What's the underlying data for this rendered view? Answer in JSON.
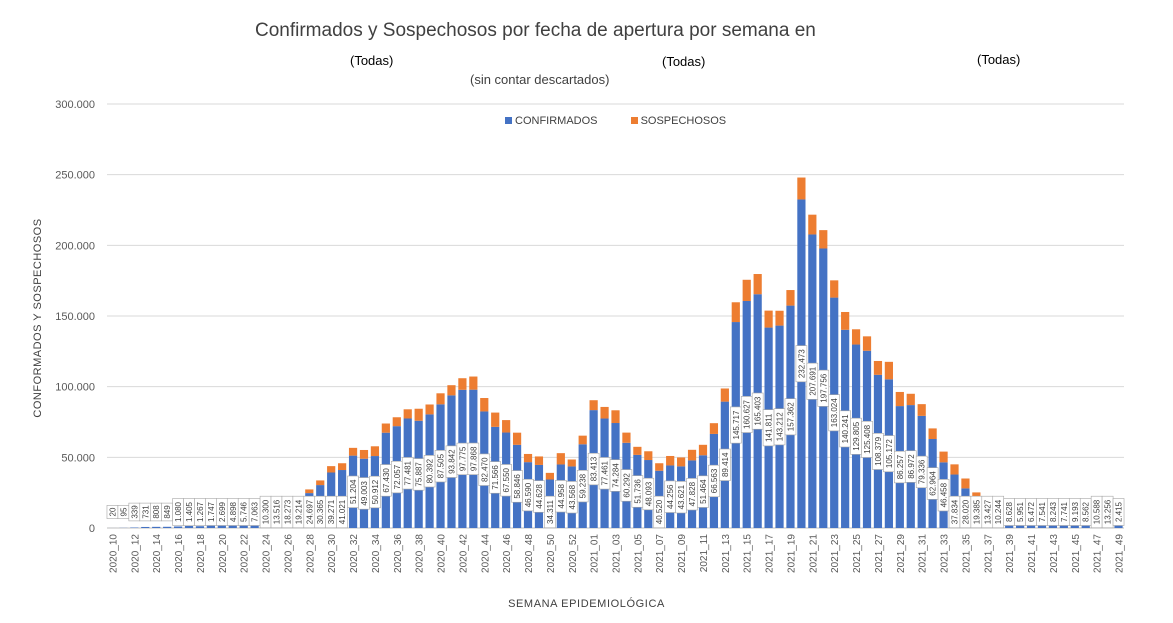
{
  "chart_data": {
    "type": "bar",
    "stacked": true,
    "title": "Confirmados y Sospechosos por fecha de apertura por semana en",
    "subtitle": "(sin contar descartados)",
    "filters": [
      "(Todas)",
      "(Todas)",
      "(Todas)"
    ],
    "xlabel": "SEMANA EPIDEMIOLÓGICA",
    "ylabel": "CONFORMADOS Y SOSPECHOSOS",
    "ylim": [
      0,
      300000
    ],
    "yticks": [
      0,
      50000,
      100000,
      150000,
      200000,
      250000,
      300000
    ],
    "ytick_labels": [
      "0",
      "50.000",
      "100.000",
      "150.000",
      "200.000",
      "250.000",
      "300.000"
    ],
    "legend_position": "top-center",
    "categories": [
      "2020_10",
      "2020_11",
      "2020_12",
      "2020_13",
      "2020_14",
      "2020_15",
      "2020_16",
      "2020_17",
      "2020_18",
      "2020_19",
      "2020_20",
      "2020_21",
      "2020_22",
      "2020_23",
      "2020_24",
      "2020_25",
      "2020_26",
      "2020_27",
      "2020_28",
      "2020_29",
      "2020_30",
      "2020_31",
      "2020_32",
      "2020_33",
      "2020_34",
      "2020_35",
      "2020_36",
      "2020_37",
      "2020_38",
      "2020_39",
      "2020_40",
      "2020_41",
      "2020_42",
      "2020_43",
      "2020_44",
      "2020_45",
      "2020_46",
      "2020_47",
      "2020_48",
      "2020_49",
      "2020_50",
      "2020_51",
      "2020_52",
      "2020_53",
      "2021_01",
      "2021_02",
      "2021_03",
      "2021_04",
      "2021_05",
      "2021_06",
      "2021_07",
      "2021_08",
      "2021_09",
      "2021_10",
      "2021_11",
      "2021_12",
      "2021_13",
      "2021_14",
      "2021_15",
      "2021_16",
      "2021_17",
      "2021_18",
      "2021_19",
      "2021_20",
      "2021_21",
      "2021_22",
      "2021_23",
      "2021_24",
      "2021_25",
      "2021_26",
      "2021_27",
      "2021_28",
      "2021_29",
      "2021_30",
      "2021_31",
      "2021_32",
      "2021_33",
      "2021_34",
      "2021_35",
      "2021_36",
      "2021_37",
      "2021_38",
      "2021_39",
      "2021_40",
      "2021_41",
      "2021_42",
      "2021_43",
      "2021_44",
      "2021_45",
      "2021_46",
      "2021_47",
      "2021_48",
      "2021_49"
    ],
    "x_tick_labels": [
      "2020_10",
      "2020_12",
      "2020_14",
      "2020_16",
      "2020_18",
      "2020_20",
      "2020_22",
      "2020_24",
      "2020_26",
      "2020_28",
      "2020_30",
      "2020_32",
      "2020_34",
      "2020_36",
      "2020_38",
      "2020_40",
      "2020_42",
      "2020_44",
      "2020_46",
      "2020_48",
      "2020_50",
      "2020_52",
      "2021_01",
      "2021_03",
      "2021_05",
      "2021_07",
      "2021_09",
      "2021_11",
      "2021_13",
      "2021_15",
      "2021_17",
      "2021_19",
      "2021_21",
      "2021_23",
      "2021_25",
      "2021_27",
      "2021_29",
      "2021_31",
      "2021_33",
      "2021_35",
      "2021_37",
      "2021_39",
      "2021_41",
      "2021_43",
      "2021_45",
      "2021_47",
      "2021_49"
    ],
    "series": [
      {
        "name": "CONFIRMADOS",
        "color": "#4472C4",
        "values": [
          20,
          95,
          339,
          731,
          808,
          849,
          1080,
          1405,
          1267,
          1747,
          2699,
          4898,
          5746,
          7063,
          10300,
          13516,
          18273,
          19214,
          24697,
          30365,
          39271,
          41021,
          51204,
          49003,
          50912,
          67430,
          72057,
          77481,
          75887,
          80392,
          87505,
          93842,
          97775,
          97868,
          82470,
          71566,
          67550,
          58846,
          46590,
          44628,
          34311,
          44958,
          43568,
          59238,
          83413,
          77461,
          74284,
          60292,
          51736,
          48093,
          40520,
          44256,
          43621,
          47828,
          51464,
          66563,
          89414,
          145717,
          160627,
          165403,
          141811,
          143212,
          157362,
          232473,
          207691,
          197756,
          163024,
          140241,
          129805,
          125408,
          108379,
          105172,
          86257,
          86972,
          79336,
          62964,
          46458,
          37834,
          28020,
          19385,
          13427,
          10244,
          8628,
          5951,
          6472,
          7541,
          8243,
          7741,
          9193,
          8562,
          10588,
          13256,
          2415
        ],
        "labels": [
          "20",
          "95",
          "339",
          "731",
          "808",
          "849",
          "1.080",
          "1.405",
          "1.267",
          "1.747",
          "2.699",
          "4.898",
          "5.746",
          "7.063",
          "10.300",
          "13.516",
          "18.273",
          "19.214",
          "24.697",
          "30.365",
          "39.271",
          "41.021",
          "51.204",
          "49.003",
          "50.912",
          "67.430",
          "72.057",
          "77.481",
          "75.887",
          "80.392",
          "87.505",
          "93.842",
          "97.775",
          "97.868",
          "82.470",
          "71.566",
          "67.550",
          "58.846",
          "46.590",
          "44.628",
          "34.311",
          "44.958",
          "43.568",
          "59.238",
          "83.413",
          "77.461",
          "74.284",
          "60.292",
          "51.736",
          "48.093",
          "40.520",
          "44.256",
          "43.621",
          "47.828",
          "51.464",
          "66.563",
          "89.414",
          "145.717",
          "160.627",
          "165.403",
          "141.811",
          "143.212",
          "157.362",
          "232.473",
          "207.691",
          "197.756",
          "163.024",
          "140.241",
          "129.805",
          "125.408",
          "108.379",
          "105.172",
          "86.257",
          "86.972",
          "79.336",
          "62.964",
          "46.458",
          "37.834",
          "28.020",
          "19.385",
          "13.427",
          "10.244",
          "8.628",
          "5.951",
          "6.472",
          "7.541",
          "8.243",
          "7.741",
          "9.193",
          "8.562",
          "10.588",
          "13.256",
          "2.415"
        ]
      },
      {
        "name": "SOSPECHOSOS",
        "color": "#ED7D31",
        "values": [
          0,
          0,
          0,
          0,
          0,
          0,
          0,
          0,
          0,
          0,
          0,
          0,
          0,
          0,
          500,
          800,
          1500,
          2200,
          2600,
          3300,
          4500,
          4800,
          5500,
          6200,
          6900,
          6500,
          6300,
          6500,
          8500,
          7000,
          7800,
          7200,
          8200,
          9300,
          9500,
          10100,
          8800,
          8600,
          5800,
          6000,
          4700,
          8000,
          4900,
          6100,
          7000,
          8200,
          9000,
          7200,
          5700,
          6200,
          5300,
          6700,
          6300,
          7500,
          7400,
          7600,
          9300,
          14000,
          15000,
          14300,
          12000,
          10500,
          11000,
          15500,
          14000,
          13000,
          12200,
          12600,
          10800,
          10200,
          9800,
          12400,
          10000,
          8000,
          8300,
          7500,
          7600,
          7200,
          7000,
          5800,
          4500,
          4000,
          3500,
          3000,
          2800,
          2600,
          2400,
          2200,
          2000,
          2100,
          2400,
          4400,
          1200
        ]
      }
    ]
  }
}
